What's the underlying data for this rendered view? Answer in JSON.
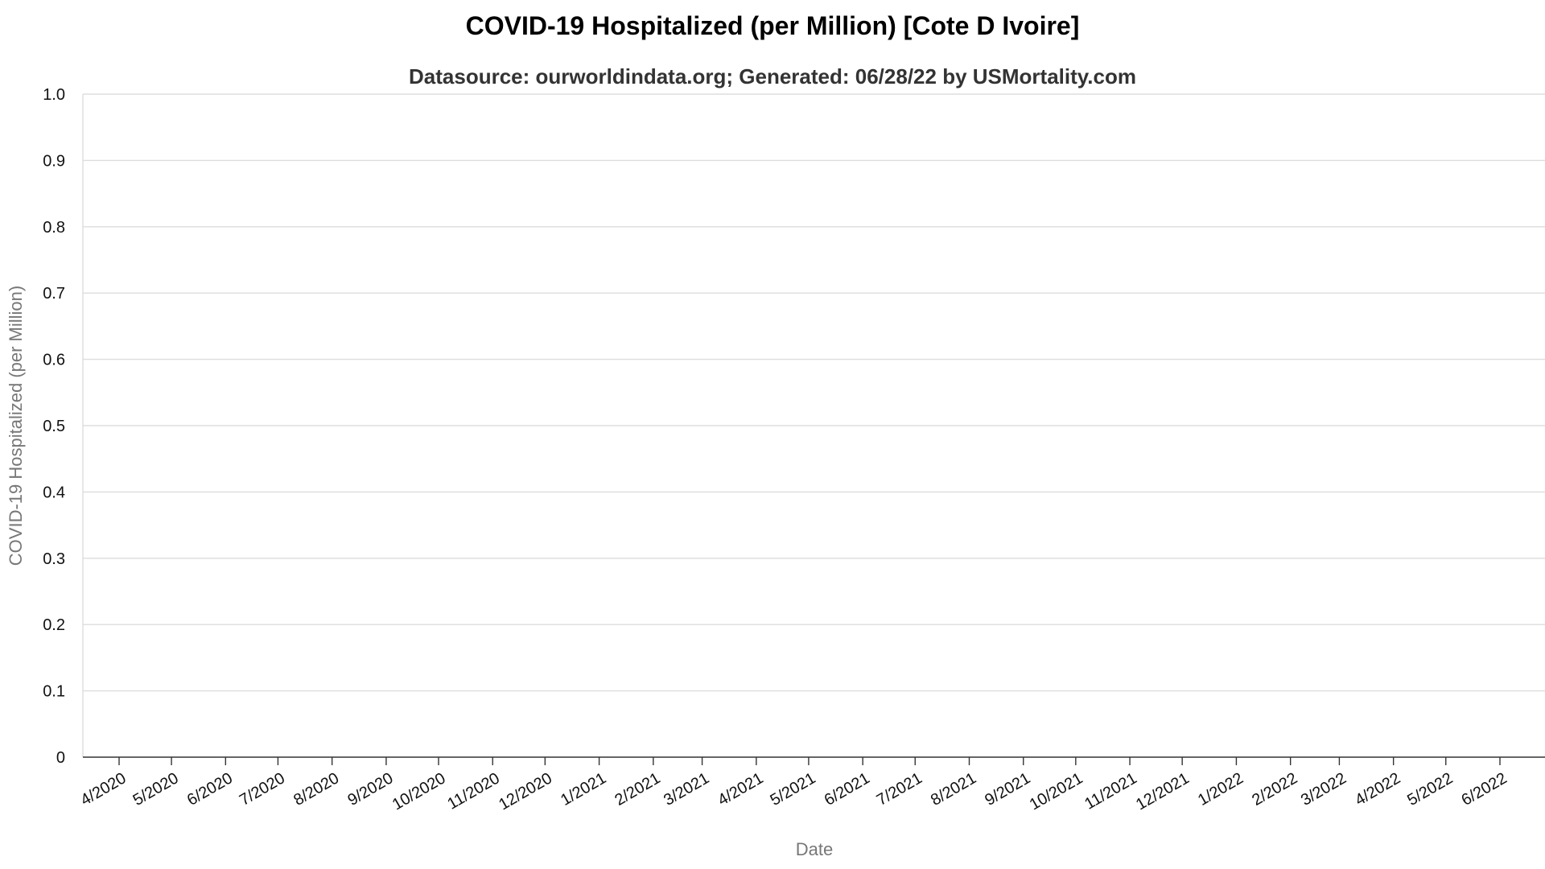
{
  "chart_data": {
    "type": "line",
    "title": "COVID-19 Hospitalized (per Million) [Cote D Ivoire]",
    "subtitle": "Datasource: ourworldindata.org; Generated: 06/28/22 by USMortality.com",
    "xlabel": "Date",
    "ylabel": "COVID-19 Hospitalized (per Million)",
    "ylim": [
      0,
      1
    ],
    "y_ticks": [
      "0",
      "0.1",
      "0.2",
      "0.3",
      "0.4",
      "0.5",
      "0.6",
      "0.7",
      "0.8",
      "0.9",
      "1.0"
    ],
    "x_ticks": [
      "4/2020",
      "5/2020",
      "6/2020",
      "7/2020",
      "8/2020",
      "9/2020",
      "10/2020",
      "11/2020",
      "12/2020",
      "1/2021",
      "2/2021",
      "3/2021",
      "4/2021",
      "5/2021",
      "6/2021",
      "7/2021",
      "8/2021",
      "9/2021",
      "10/2021",
      "11/2021",
      "12/2021",
      "1/2022",
      "2/2022",
      "3/2022",
      "4/2022",
      "5/2022",
      "6/2022"
    ],
    "grid": true,
    "series": []
  }
}
